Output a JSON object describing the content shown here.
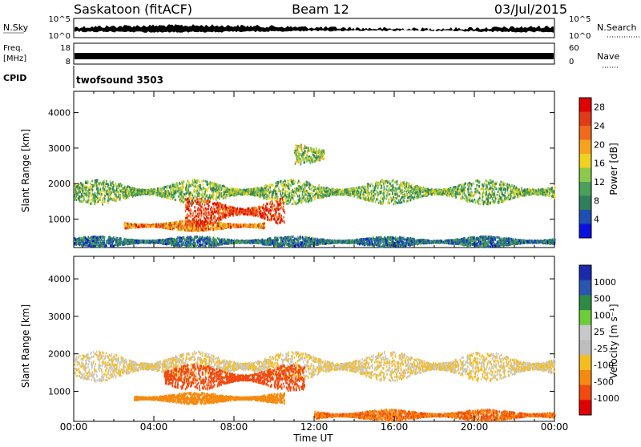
{
  "header": {
    "station": "Saskatoon (fitACF)",
    "beam": "Beam 12",
    "date": "03/Jul/2015"
  },
  "status": {
    "nsky_label": "N.Sky",
    "nsky_ticks": [
      "10^5",
      "10^0"
    ],
    "nsearch_label": "N.Search",
    "nsearch_ticks": [
      "10^5",
      "10^0"
    ],
    "freq_label": "Freq.",
    "freq_unit": "[MHz]",
    "freq_ticks": [
      "18",
      "8"
    ],
    "nave_label": "Nave",
    "nave_ticks": [
      "60",
      "0"
    ],
    "cpid_label": "CPID",
    "cpid_value": "twofsound 3503"
  },
  "colors": {
    "power": [
      "#0a10e0",
      "#1e4fb4",
      "#2f7f5a",
      "#4aa05a",
      "#8cc84a",
      "#f0d020",
      "#f5a21e",
      "#ef6a1a",
      "#e03a18",
      "#e00000"
    ],
    "velocity": [
      "#e00000",
      "#f04a10",
      "#f58a10",
      "#f5be20",
      "#bdbdbd",
      "#c8c8c8",
      "#6ccc3a",
      "#2e8a45",
      "#2a55b0",
      "#1a2aa8"
    ],
    "status_bar": "#000000"
  },
  "chart_data": [
    {
      "type": "heatmap",
      "name": "power-panel",
      "ylabel": "Slant Range [km]",
      "yticks": [
        1000,
        2000,
        3000,
        4000
      ],
      "ylim": [
        200,
        4600
      ],
      "xlim_hours": [
        0,
        24
      ],
      "colorbar": {
        "label": "Power [dB]",
        "ticks": [
          "4",
          "8",
          "12",
          "16",
          "20",
          "24",
          "28"
        ],
        "range": [
          0,
          30
        ]
      },
      "scatter_bands": [
        {
          "t0": 0.0,
          "t1": 24.0,
          "r_center": 1750,
          "r_half": 350,
          "values": [
            6,
            18
          ]
        },
        {
          "t0": 2.5,
          "t1": 9.5,
          "r_center": 800,
          "r_half": 150,
          "values": [
            14,
            28
          ]
        },
        {
          "t0": 5.5,
          "t1": 10.5,
          "r_center": 1200,
          "r_half": 400,
          "values": [
            20,
            30
          ]
        },
        {
          "t0": 11.0,
          "t1": 12.5,
          "r_center": 2800,
          "r_half": 300,
          "values": [
            8,
            20
          ]
        },
        {
          "t0": 0.0,
          "t1": 24.0,
          "r_center": 350,
          "r_half": 150,
          "values": [
            2,
            12
          ]
        }
      ]
    },
    {
      "type": "heatmap",
      "name": "velocity-panel",
      "ylabel": "Slant Range [km]",
      "xlabel": "Time UT",
      "yticks": [
        1000,
        2000,
        3000,
        4000
      ],
      "ylim": [
        200,
        4600
      ],
      "xticks": [
        "00:00",
        "04:00",
        "08:00",
        "12:00",
        "16:00",
        "20:00",
        "00:00"
      ],
      "xlim_hours": [
        0,
        24
      ],
      "colorbar": {
        "label": "Velocity [m s⁻¹]",
        "ticks": [
          "1000",
          "500",
          "100",
          "25",
          "-25",
          "-100",
          "-500",
          "-1000"
        ],
        "range": [
          -1000,
          1000
        ]
      },
      "scatter_bands": [
        {
          "t0": 0.0,
          "t1": 24.0,
          "r_center": 1650,
          "r_half": 400,
          "values": [
            -25,
            25
          ]
        },
        {
          "t0": 3.0,
          "t1": 10.5,
          "r_center": 800,
          "r_half": 150,
          "values": [
            -100,
            -25
          ]
        },
        {
          "t0": 4.5,
          "t1": 11.5,
          "r_center": 1350,
          "r_half": 350,
          "values": [
            -500,
            -100
          ]
        },
        {
          "t0": 12.0,
          "t1": 24.0,
          "r_center": 350,
          "r_half": 150,
          "values": [
            -150,
            -25
          ]
        }
      ]
    }
  ]
}
